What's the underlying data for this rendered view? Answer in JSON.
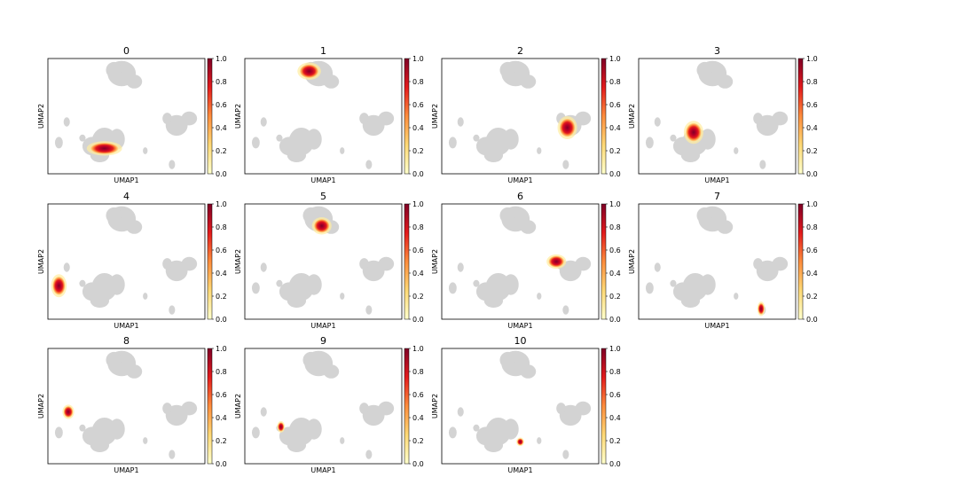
{
  "chart_data": {
    "type": "scatter",
    "description": "UMAP density plots per cluster",
    "xlabel": "UMAP1",
    "ylabel": "UMAP2",
    "colorbar": {
      "min": 0.0,
      "max": 1.0,
      "ticks": [
        "0.0",
        "0.2",
        "0.4",
        "0.6",
        "0.8",
        "1.0"
      ],
      "colormap": "YlOrRd"
    },
    "background_color": "#d3d3d3",
    "panels": [
      {
        "title": "0",
        "hotspot": {
          "x": 0.36,
          "y": 0.78,
          "rx": 0.09,
          "ry": 0.05
        }
      },
      {
        "title": "1",
        "hotspot": {
          "x": 0.41,
          "y": 0.11,
          "rx": 0.06,
          "ry": 0.06
        }
      },
      {
        "title": "2",
        "hotspot": {
          "x": 0.8,
          "y": 0.6,
          "rx": 0.05,
          "ry": 0.08
        }
      },
      {
        "title": "3",
        "hotspot": {
          "x": 0.35,
          "y": 0.64,
          "rx": 0.05,
          "ry": 0.08
        }
      },
      {
        "title": "4",
        "hotspot": {
          "x": 0.07,
          "y": 0.71,
          "rx": 0.04,
          "ry": 0.08
        }
      },
      {
        "title": "5",
        "hotspot": {
          "x": 0.49,
          "y": 0.19,
          "rx": 0.05,
          "ry": 0.06
        }
      },
      {
        "title": "6",
        "hotspot": {
          "x": 0.73,
          "y": 0.5,
          "rx": 0.05,
          "ry": 0.05
        }
      },
      {
        "title": "7",
        "hotspot": {
          "x": 0.78,
          "y": 0.91,
          "rx": 0.02,
          "ry": 0.05
        }
      },
      {
        "title": "8",
        "hotspot": {
          "x": 0.13,
          "y": 0.55,
          "rx": 0.03,
          "ry": 0.05
        }
      },
      {
        "title": "9",
        "hotspot": {
          "x": 0.23,
          "y": 0.68,
          "rx": 0.02,
          "ry": 0.04
        }
      },
      {
        "title": "10",
        "hotspot": {
          "x": 0.5,
          "y": 0.81,
          "rx": 0.02,
          "ry": 0.03
        }
      }
    ]
  },
  "colors": {
    "scale": [
      "#ffffcc",
      "#fed976",
      "#fd8d3c",
      "#e31a1c",
      "#800026"
    ],
    "background_points": "#d3d3d3"
  }
}
